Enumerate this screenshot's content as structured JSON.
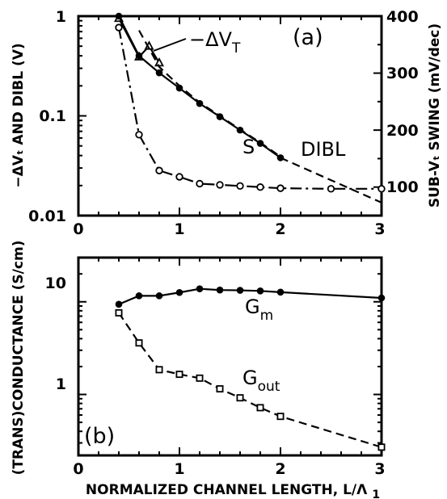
{
  "chart_data": [
    {
      "panel_label": "(a)",
      "type": "line",
      "xlim": [
        0,
        3
      ],
      "x_ticks": [
        "0",
        "1",
        "2",
        "3"
      ],
      "y_left": {
        "label": "−ΔVₜ AND DIBL (V)",
        "scale": "log",
        "lim": [
          0.01,
          1
        ],
        "ticks": [
          "1",
          "0.1",
          "0.01"
        ]
      },
      "y_right": {
        "label": "SUB-Vₜ SWING (mV/dec)",
        "scale": "linear",
        "lim": [
          50,
          400
        ],
        "ticks": [
          "400",
          "300",
          "200",
          "100"
        ]
      },
      "series": [
        {
          "name": "−ΔV",
          "name_sub": "T",
          "axis": "left",
          "style": "solid",
          "marker": "triangle",
          "x": [
            0.4,
            0.6,
            0.7,
            0.8
          ],
          "y": [
            0.95,
            0.39,
            0.5,
            0.34
          ]
        },
        {
          "name": "DIBL",
          "axis": "left",
          "style": "solid",
          "marker": "circle-filled",
          "x": [
            0.4,
            0.6,
            0.8,
            1.0,
            1.2,
            1.4,
            1.6,
            1.8,
            2.0
          ],
          "y": [
            1.0,
            0.4,
            0.27,
            0.19,
            0.133,
            0.098,
            0.072,
            0.053,
            0.038
          ]
        },
        {
          "name": "DIBL extrapolation",
          "axis": "left",
          "style": "dashed",
          "marker": "none",
          "x": [
            2.0,
            3.0
          ],
          "y": [
            0.038,
            0.0135
          ]
        },
        {
          "name": "−ΔV extrapolation",
          "axis": "left",
          "style": "dashed",
          "marker": "none",
          "x": [
            0.6,
            0.8,
            1.0,
            1.2,
            1.4,
            1.6,
            1.8,
            2.0
          ],
          "y": [
            0.72,
            0.31,
            0.2,
            0.136,
            0.1,
            0.073,
            0.054,
            0.039
          ]
        },
        {
          "name": "S",
          "axis": "right",
          "style": "dashdot",
          "marker": "circle",
          "x": [
            0.4,
            0.6,
            0.8,
            1.0,
            1.2,
            1.4,
            1.6,
            1.8,
            2.0,
            2.5,
            3.0
          ],
          "y": [
            380,
            192,
            129,
            118,
            106,
            104,
            102,
            100,
            98,
            97,
            97
          ]
        }
      ],
      "annotations": {
        "dvt": "−ΔV",
        "dvt_sub": "T",
        "dibl": "DIBL",
        "s": "S"
      }
    },
    {
      "panel_label": "(b)",
      "type": "line",
      "xlim": [
        0,
        3
      ],
      "x_ticks": [
        "0",
        "1",
        "2",
        "3"
      ],
      "xlabel": "NORMALIZED CHANNEL LENGTH, L/Λ",
      "xlabel_sub": "1",
      "y_left": {
        "label": "(TRANS)CONDUCTANCE (S/cm)",
        "scale": "log",
        "lim": [
          0.22,
          30
        ],
        "ticks": [
          "10",
          "1"
        ]
      },
      "series": [
        {
          "name": "G",
          "name_sub": "m",
          "style": "solid",
          "marker": "circle-filled",
          "x": [
            0.4,
            0.6,
            0.8,
            1.0,
            1.2,
            1.4,
            1.6,
            1.8,
            2.0,
            3.0
          ],
          "y": [
            9.4,
            11.6,
            11.6,
            12.6,
            13.8,
            13.4,
            13.3,
            13.1,
            12.7,
            11.0
          ]
        },
        {
          "name": "G",
          "name_sub": "out",
          "style": "dashed",
          "marker": "square",
          "x": [
            0.4,
            0.6,
            0.8,
            1.0,
            1.2,
            1.4,
            1.6,
            1.8,
            2.0,
            3.0
          ],
          "y": [
            7.6,
            3.6,
            1.85,
            1.65,
            1.5,
            1.15,
            0.92,
            0.72,
            0.58,
            0.27
          ]
        }
      ]
    }
  ]
}
